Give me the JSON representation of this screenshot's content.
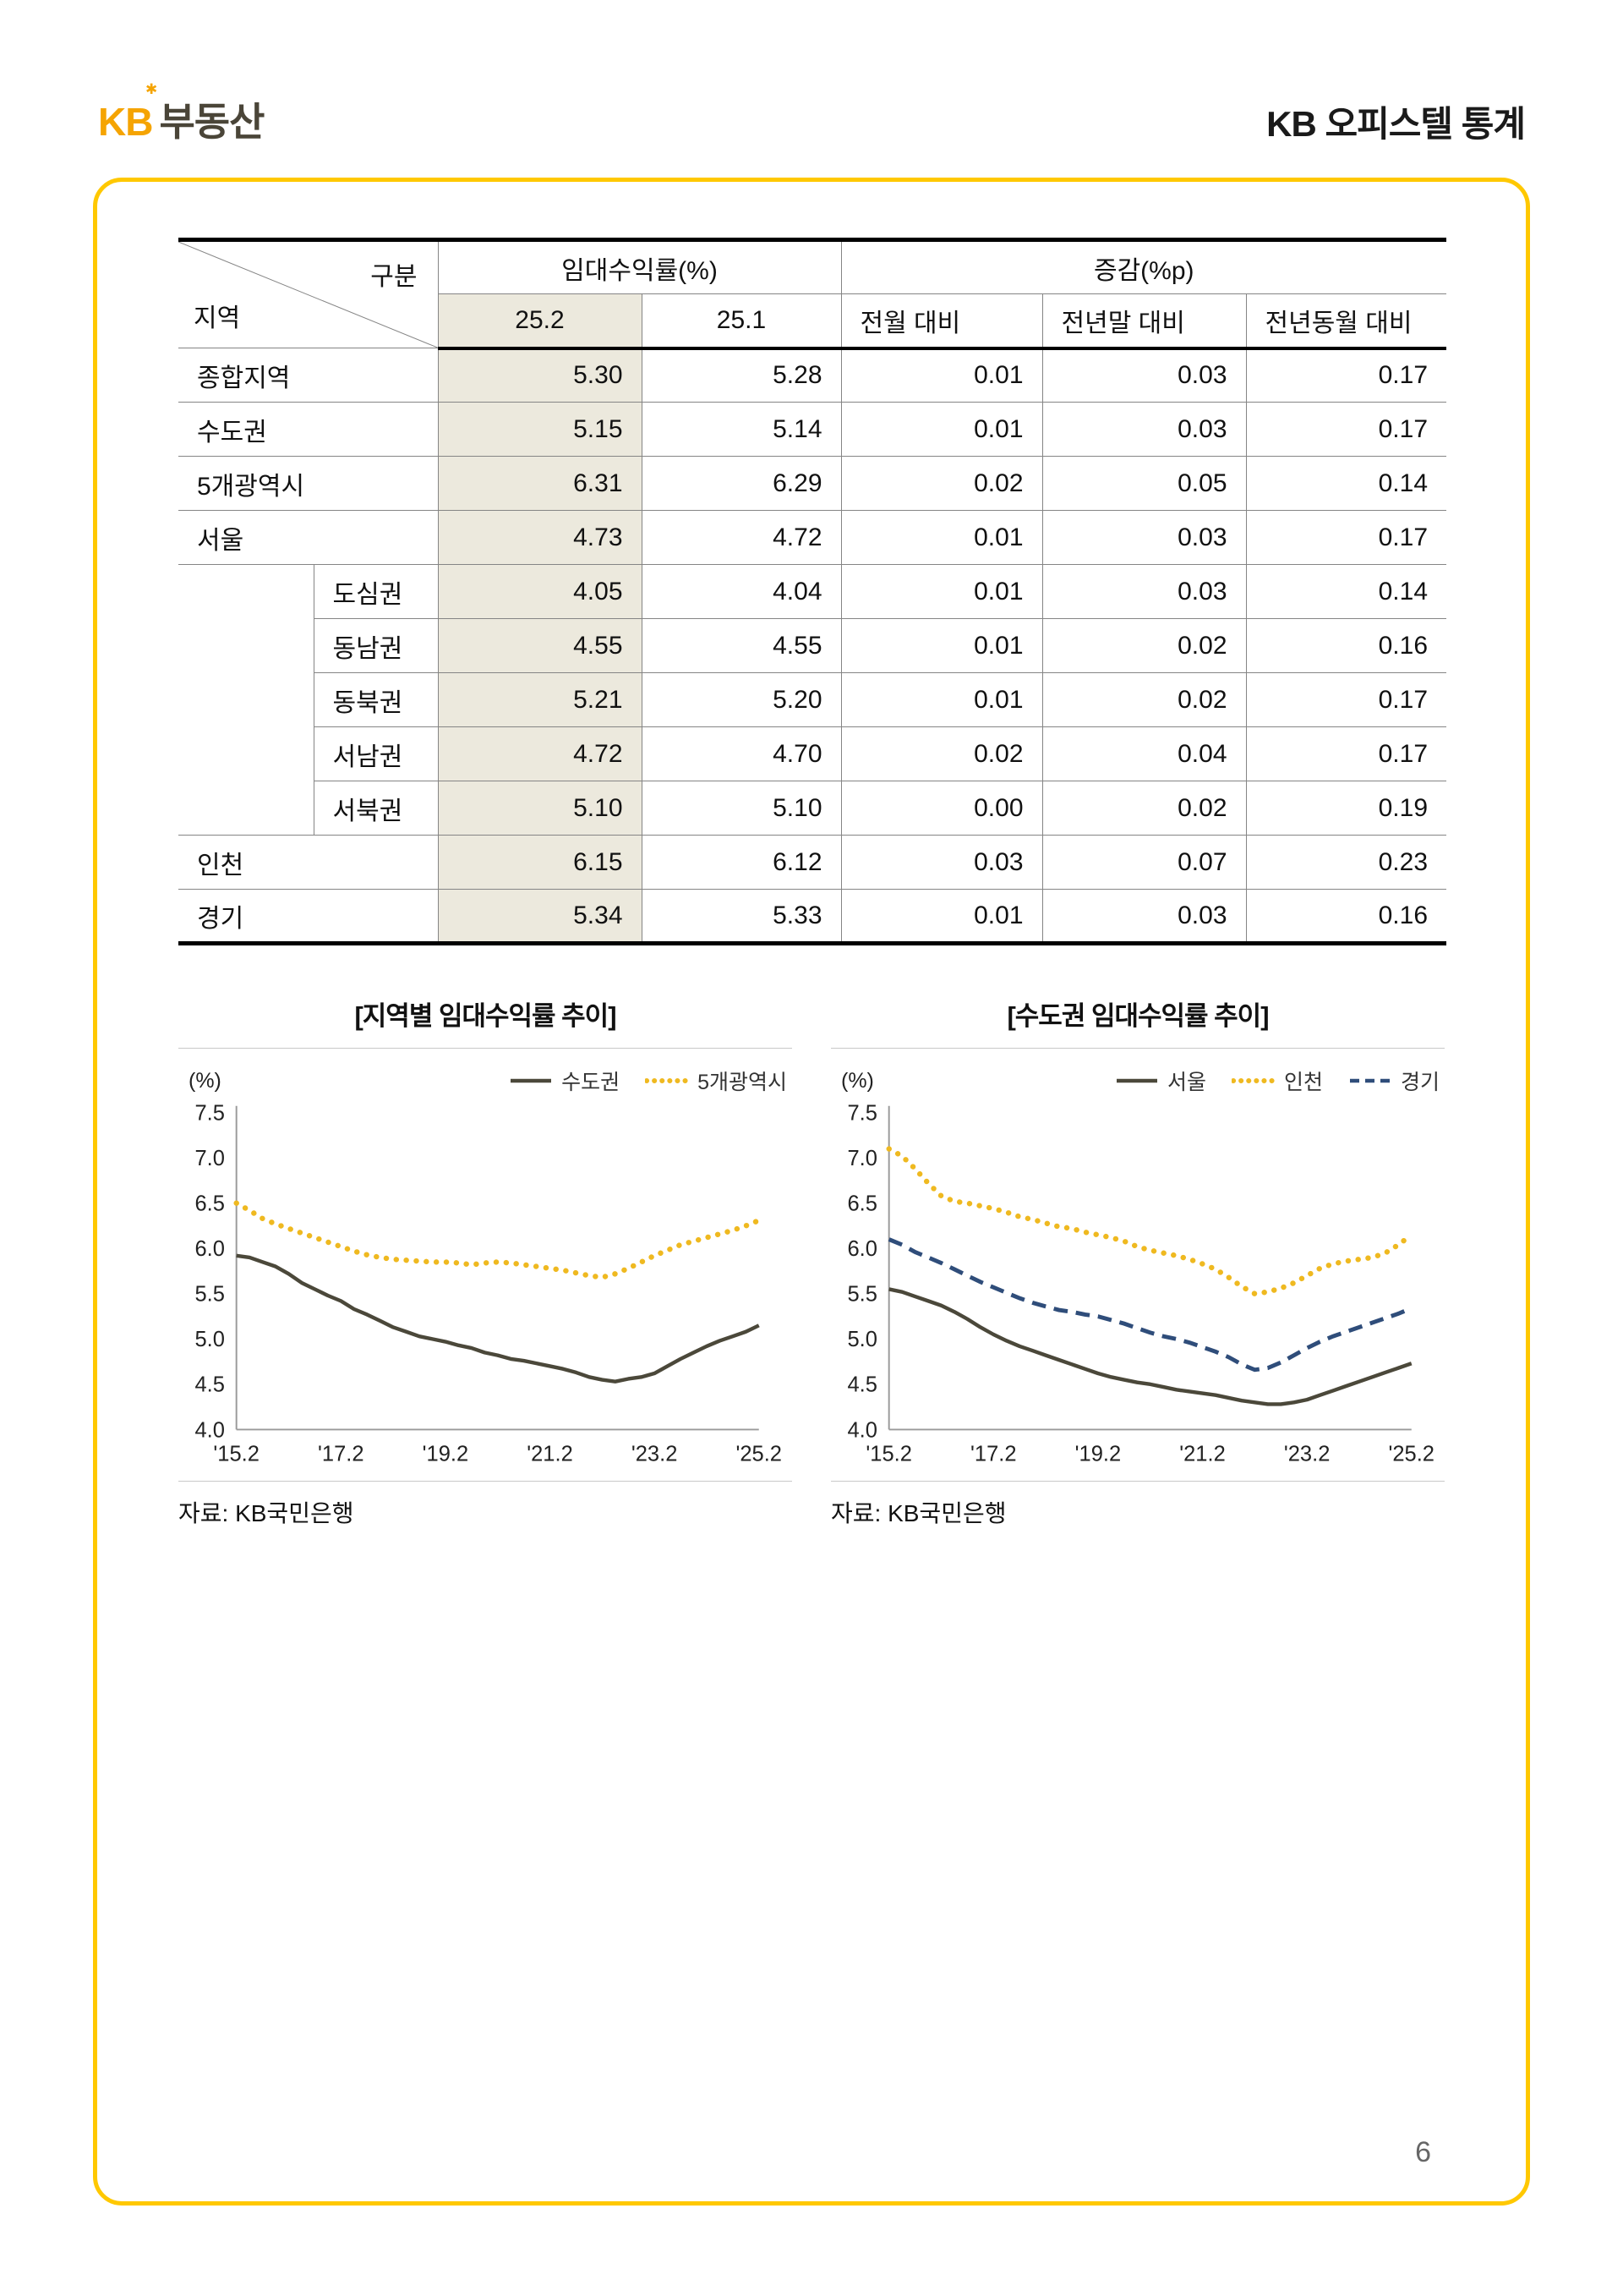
{
  "page": {
    "logo_kb": "KB",
    "logo_star": "✱",
    "logo_suffix": "부동산",
    "header_title": "KB 오피스텔 통계",
    "page_number": "6",
    "accent_yellow": "#FFC800",
    "logo_color": "#F5A402"
  },
  "table": {
    "header": {
      "region_label": "지역",
      "category_label": "구분",
      "group1": "임대수익률(%)",
      "group2": "증감(%p)",
      "cols": [
        "25.2",
        "25.1",
        "전월 대비",
        "전년말 대비",
        "전년동월 대비"
      ]
    },
    "highlight_col_bg": "#ECE9DD",
    "rows": [
      {
        "region": "종합지역",
        "sub": null,
        "values": [
          "5.30",
          "5.28",
          "0.01",
          "0.03",
          "0.17"
        ]
      },
      {
        "region": "수도권",
        "sub": null,
        "values": [
          "5.15",
          "5.14",
          "0.01",
          "0.03",
          "0.17"
        ]
      },
      {
        "region": "5개광역시",
        "sub": null,
        "values": [
          "6.31",
          "6.29",
          "0.02",
          "0.05",
          "0.14"
        ]
      },
      {
        "region": "서울",
        "sub": null,
        "values": [
          "4.73",
          "4.72",
          "0.01",
          "0.03",
          "0.17"
        ]
      },
      {
        "region": "",
        "sub": "도심권",
        "values": [
          "4.05",
          "4.04",
          "0.01",
          "0.03",
          "0.14"
        ]
      },
      {
        "region": "",
        "sub": "동남권",
        "values": [
          "4.55",
          "4.55",
          "0.01",
          "0.02",
          "0.16"
        ]
      },
      {
        "region": "",
        "sub": "동북권",
        "values": [
          "5.21",
          "5.20",
          "0.01",
          "0.02",
          "0.17"
        ]
      },
      {
        "region": "",
        "sub": "서남권",
        "values": [
          "4.72",
          "4.70",
          "0.02",
          "0.04",
          "0.17"
        ]
      },
      {
        "region": "",
        "sub": "서북권",
        "values": [
          "5.10",
          "5.10",
          "0.00",
          "0.02",
          "0.19"
        ]
      },
      {
        "region": "인천",
        "sub": null,
        "values": [
          "6.15",
          "6.12",
          "0.03",
          "0.07",
          "0.23"
        ]
      },
      {
        "region": "경기",
        "sub": null,
        "values": [
          "5.34",
          "5.33",
          "0.01",
          "0.03",
          "0.16"
        ]
      }
    ]
  },
  "charts": {
    "source_label": "자료: KB국민은행"
  },
  "chart_data": [
    {
      "type": "line",
      "title": "[지역별 임대수익률 추이]",
      "ylabel": "(%)",
      "ylim": [
        4.0,
        7.5
      ],
      "ytick_step": 0.5,
      "grid": false,
      "legend_position": "top-right",
      "x_ticks": [
        "'15.2",
        "'17.2",
        "'19.2",
        "'21.2",
        "'23.2",
        "'25.2"
      ],
      "x_tick_idx": [
        0,
        8,
        16,
        24,
        32,
        40
      ],
      "series": [
        {
          "name": "수도권",
          "style": "solid",
          "color": "#4B483A",
          "values": [
            5.92,
            5.9,
            5.85,
            5.8,
            5.72,
            5.62,
            5.55,
            5.48,
            5.42,
            5.33,
            5.27,
            5.2,
            5.13,
            5.08,
            5.03,
            5.0,
            4.97,
            4.93,
            4.9,
            4.85,
            4.82,
            4.78,
            4.76,
            4.73,
            4.7,
            4.67,
            4.63,
            4.58,
            4.55,
            4.53,
            4.56,
            4.58,
            4.62,
            4.7,
            4.78,
            4.85,
            4.92,
            4.98,
            5.03,
            5.08,
            5.15
          ]
        },
        {
          "name": "5개광역시",
          "style": "dotted",
          "color": "#EFB920",
          "values": [
            6.5,
            6.42,
            6.33,
            6.27,
            6.22,
            6.17,
            6.12,
            6.07,
            6.02,
            5.97,
            5.93,
            5.9,
            5.88,
            5.87,
            5.86,
            5.85,
            5.85,
            5.84,
            5.82,
            5.84,
            5.85,
            5.84,
            5.82,
            5.8,
            5.78,
            5.76,
            5.73,
            5.7,
            5.68,
            5.72,
            5.78,
            5.85,
            5.92,
            5.98,
            6.04,
            6.08,
            6.12,
            6.16,
            6.2,
            6.25,
            6.31
          ]
        }
      ]
    },
    {
      "type": "line",
      "title": "[수도권 임대수익률 추이]",
      "ylabel": "(%)",
      "ylim": [
        4.0,
        7.5
      ],
      "ytick_step": 0.5,
      "grid": false,
      "legend_position": "top-right",
      "x_ticks": [
        "'15.2",
        "'17.2",
        "'19.2",
        "'21.2",
        "'23.2",
        "'25.2"
      ],
      "x_tick_idx": [
        0,
        8,
        16,
        24,
        32,
        40
      ],
      "series": [
        {
          "name": "서울",
          "style": "solid",
          "color": "#4B483A",
          "values": [
            5.55,
            5.52,
            5.47,
            5.42,
            5.37,
            5.3,
            5.22,
            5.13,
            5.05,
            4.98,
            4.92,
            4.87,
            4.82,
            4.77,
            4.72,
            4.67,
            4.62,
            4.58,
            4.55,
            4.52,
            4.5,
            4.47,
            4.44,
            4.42,
            4.4,
            4.38,
            4.35,
            4.32,
            4.3,
            4.28,
            4.28,
            4.3,
            4.33,
            4.38,
            4.43,
            4.48,
            4.53,
            4.58,
            4.63,
            4.68,
            4.73
          ]
        },
        {
          "name": "인천",
          "style": "dotted",
          "color": "#EFB920",
          "values": [
            7.1,
            7.02,
            6.88,
            6.72,
            6.58,
            6.52,
            6.5,
            6.47,
            6.44,
            6.4,
            6.35,
            6.32,
            6.28,
            6.24,
            6.22,
            6.18,
            6.15,
            6.12,
            6.08,
            6.02,
            5.98,
            5.95,
            5.92,
            5.88,
            5.83,
            5.77,
            5.68,
            5.58,
            5.5,
            5.52,
            5.56,
            5.62,
            5.7,
            5.78,
            5.83,
            5.86,
            5.88,
            5.9,
            5.95,
            6.04,
            6.15
          ]
        },
        {
          "name": "경기",
          "style": "dashed",
          "color": "#2F4D7A",
          "values": [
            6.1,
            6.04,
            5.96,
            5.9,
            5.84,
            5.77,
            5.7,
            5.63,
            5.57,
            5.51,
            5.45,
            5.4,
            5.36,
            5.32,
            5.3,
            5.27,
            5.25,
            5.21,
            5.17,
            5.12,
            5.07,
            5.03,
            5.0,
            4.96,
            4.91,
            4.86,
            4.8,
            4.72,
            4.66,
            4.68,
            4.74,
            4.82,
            4.9,
            4.97,
            5.03,
            5.08,
            5.13,
            5.18,
            5.23,
            5.28,
            5.34
          ]
        }
      ]
    }
  ]
}
